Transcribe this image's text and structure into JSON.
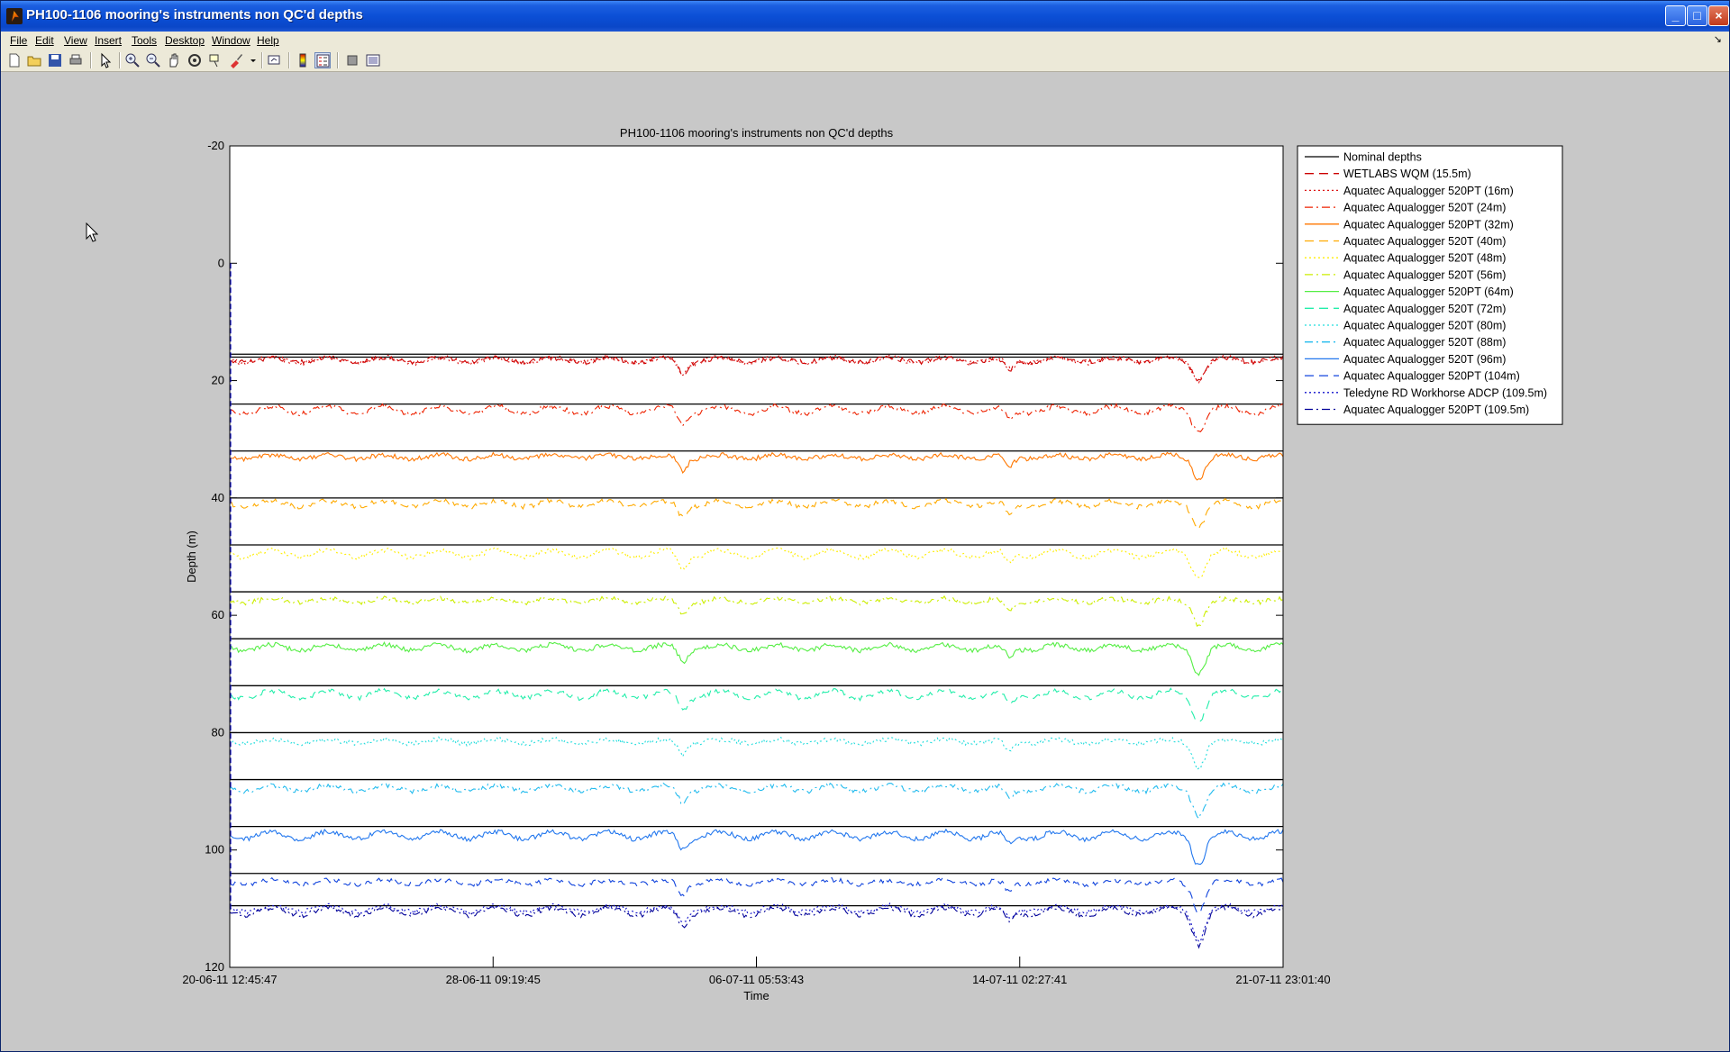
{
  "window": {
    "title": "PH100-1106 mooring's instruments non QC'd depths",
    "buttons": {
      "minimize": "_",
      "maximize": "□",
      "close": "×"
    }
  },
  "menu": {
    "items": [
      "File",
      "Edit",
      "View",
      "Insert",
      "Tools",
      "Desktop",
      "Window",
      "Help"
    ],
    "dock_glyph": "↘"
  },
  "toolbar": {
    "buttons": [
      "new-figure-icon",
      "open-file-icon",
      "save-icon",
      "print-icon",
      "edit-plot-arrow-icon",
      "zoom-in-icon",
      "zoom-out-icon",
      "pan-hand-icon",
      "rotate-3d-icon",
      "data-cursor-icon",
      "brush-icon",
      "link-plot-icon",
      "colorbar-icon",
      "legend-icon",
      "hide-plot-tools-icon",
      "show-plot-tools-icon"
    ]
  },
  "chart_data": {
    "type": "line",
    "title": "PH100-1106 mooring's instruments non QC'd depths",
    "xlabel": "Time",
    "ylabel": "Depth (m)",
    "ylim": [
      -20,
      120
    ],
    "y_reversed": true,
    "yticks": [
      "-20",
      "0",
      "20",
      "40",
      "60",
      "80",
      "100",
      "120"
    ],
    "xlim": [
      "20-06-11 12:45:47",
      "21-07-11 23:01:40"
    ],
    "xticks": [
      "20-06-11 12:45:47",
      "28-06-11 09:19:45",
      "06-07-11 05:53:43",
      "14-07-11 02:27:41",
      "21-07-11 23:01:40"
    ],
    "grid": false,
    "legend_position": "outside-top-right",
    "nominal_depths": [
      15.5,
      16,
      24,
      32,
      40,
      48,
      56,
      64,
      72,
      80,
      88,
      96,
      104,
      109.5
    ],
    "series": [
      {
        "name": "Nominal depths",
        "color": "#000000",
        "style": "solid",
        "mean_depth": null
      },
      {
        "name": "WETLABS WQM (15.5m)",
        "color": "#cc0000",
        "style": "dashed",
        "mean_depth": 16.5
      },
      {
        "name": "Aquatec Aqualogger 520PT (16m)",
        "color": "#dd1111",
        "style": "dotted",
        "mean_depth": 16.5
      },
      {
        "name": "Aquatec Aqualogger 520T (24m)",
        "color": "#ee2200",
        "style": "dashdot",
        "mean_depth": 25
      },
      {
        "name": "Aquatec Aqualogger 520PT (32m)",
        "color": "#ff7700",
        "style": "solid",
        "mean_depth": 33
      },
      {
        "name": "Aquatec Aqualogger 520T (40m)",
        "color": "#ffaa00",
        "style": "dashed",
        "mean_depth": 41
      },
      {
        "name": "Aquatec Aqualogger 520T (48m)",
        "color": "#ffee00",
        "style": "dotted",
        "mean_depth": 49.5
      },
      {
        "name": "Aquatec Aqualogger 520T (56m)",
        "color": "#ccee00",
        "style": "dashdot",
        "mean_depth": 57.5
      },
      {
        "name": "Aquatec Aqualogger 520PT (64m)",
        "color": "#55ee44",
        "style": "solid",
        "mean_depth": 65.5
      },
      {
        "name": "Aquatec Aqualogger 520T (72m)",
        "color": "#22eeaa",
        "style": "dashed",
        "mean_depth": 73.5
      },
      {
        "name": "Aquatec Aqualogger 520T (80m)",
        "color": "#22dddd",
        "style": "dotted",
        "mean_depth": 81.5
      },
      {
        "name": "Aquatec Aqualogger 520T (88m)",
        "color": "#22bbee",
        "style": "dashdot",
        "mean_depth": 89.5
      },
      {
        "name": "Aquatec Aqualogger 520T (96m)",
        "color": "#2277ee",
        "style": "solid",
        "mean_depth": 97.5
      },
      {
        "name": "Aquatec Aqualogger 520PT (104m)",
        "color": "#1144dd",
        "style": "dashed",
        "mean_depth": 105.5
      },
      {
        "name": "Teledyne RD Workhorse ADCP (109.5m)",
        "color": "#1111cc",
        "style": "dotted",
        "mean_depth": 110
      },
      {
        "name": "Aquatec Aqualogger 520PT (109.5m)",
        "color": "#000099",
        "style": "dashdot",
        "mean_depth": 110.5
      }
    ]
  }
}
